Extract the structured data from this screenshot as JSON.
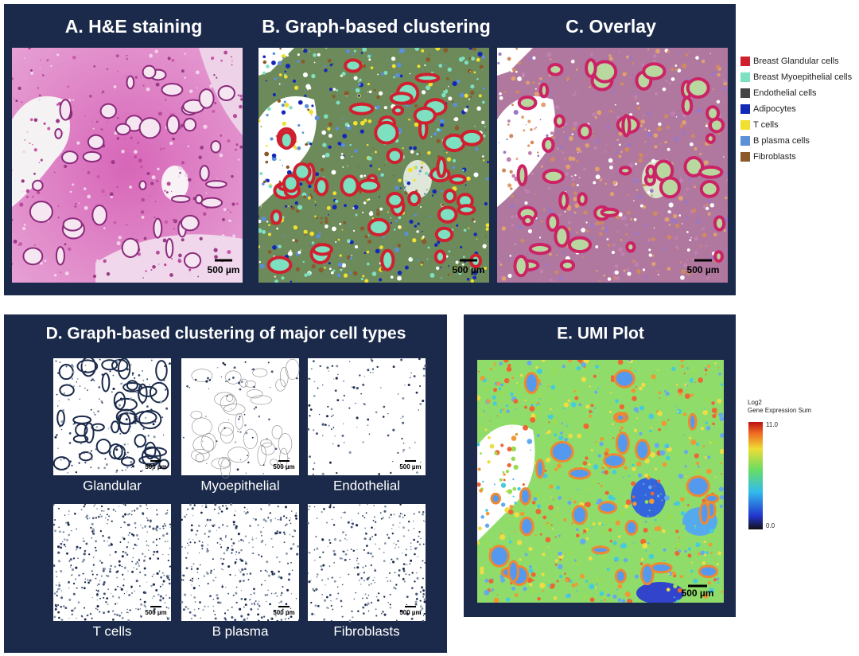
{
  "panels": {
    "a": {
      "title": "A. H&E staining",
      "scale": "500 µm"
    },
    "b": {
      "title": "B. Graph-based clustering",
      "scale": "500 µm"
    },
    "c": {
      "title": "C. Overlay",
      "scale": "500 µm"
    },
    "d": {
      "title": "D. Graph-based clustering of major cell types",
      "cells": [
        {
          "label": "Glandular",
          "scale": "500 µm"
        },
        {
          "label": "Myoepithelial",
          "scale": "500 µm"
        },
        {
          "label": "Endothelial",
          "scale": "500 µm"
        },
        {
          "label": "T cells",
          "scale": "500 µm"
        },
        {
          "label": "B plasma",
          "scale": "500 µm"
        },
        {
          "label": "Fibroblasts",
          "scale": "500 µm"
        }
      ]
    },
    "e": {
      "title": "E. UMI Plot",
      "scale": "500 µm",
      "colorbar": {
        "title": [
          "Log2",
          "Gene Expression Sum"
        ],
        "max": "11.0",
        "min": "0.0"
      }
    }
  },
  "legend": [
    {
      "label": "Breast Glandular cells",
      "color": "#d0202f"
    },
    {
      "label": "Breast Myoepithelial cells",
      "color": "#7de0c0"
    },
    {
      "label": "Endothelial cells",
      "color": "#444444"
    },
    {
      "label": "Adipocytes",
      "color": "#1428b8"
    },
    {
      "label": "T cells",
      "color": "#f0e030"
    },
    {
      "label": "B plasma cells",
      "color": "#5b8fd8"
    },
    {
      "label": "Fibroblasts",
      "color": "#8b5a2b"
    }
  ]
}
